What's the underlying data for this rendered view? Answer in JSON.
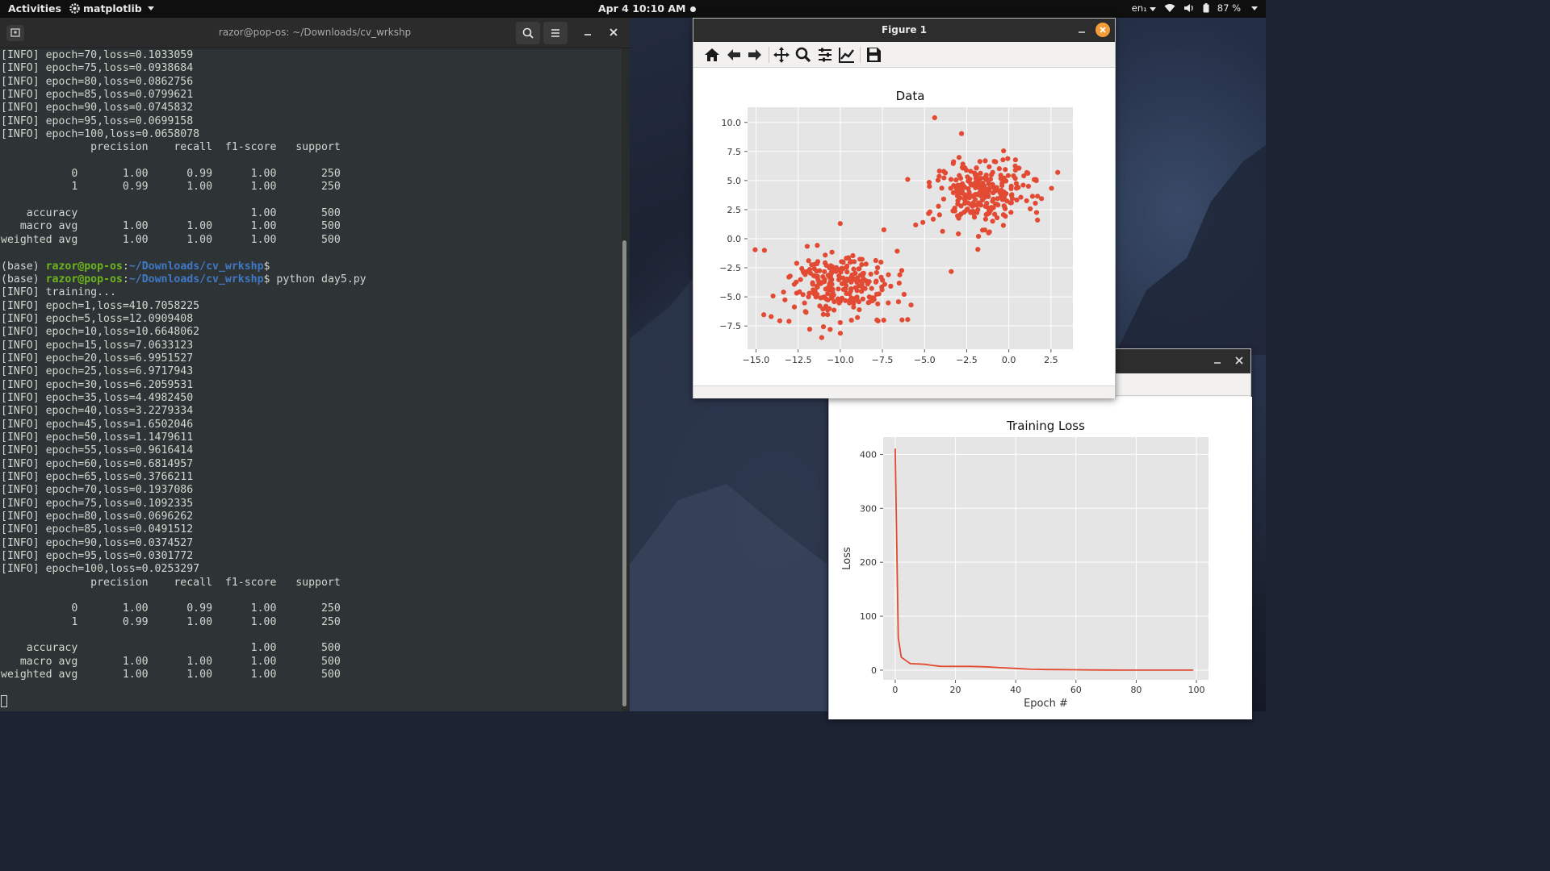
{
  "topbar": {
    "activities": "Activities",
    "app_name": "matplotlib",
    "clock": "Apr 4  10:10 AM",
    "keyboard": "en₁",
    "battery": "87 %"
  },
  "terminal": {
    "title": "razor@pop-os: ~/Downloads/cv_wrkshp",
    "lines": [
      {
        "t": "[INFO] epoch=70,loss=0.1033059"
      },
      {
        "t": "[INFO] epoch=75,loss=0.0938684"
      },
      {
        "t": "[INFO] epoch=80,loss=0.0862756"
      },
      {
        "t": "[INFO] epoch=85,loss=0.0799621"
      },
      {
        "t": "[INFO] epoch=90,loss=0.0745832"
      },
      {
        "t": "[INFO] epoch=95,loss=0.0699158"
      },
      {
        "t": "[INFO] epoch=100,loss=0.0658078"
      },
      {
        "t": "              precision    recall  f1-score   support"
      },
      {
        "t": ""
      },
      {
        "t": "           0       1.00      0.99      1.00       250"
      },
      {
        "t": "           1       0.99      1.00      1.00       250"
      },
      {
        "t": ""
      },
      {
        "t": "    accuracy                           1.00       500"
      },
      {
        "t": "   macro avg       1.00      1.00      1.00       500"
      },
      {
        "t": "weighted avg       1.00      1.00      1.00       500"
      },
      {
        "t": ""
      },
      {
        "prompt": true,
        "pre": "(base) ",
        "user": "razor@pop-os",
        "sep": ":",
        "path": "~/Downloads/cv_wrkshp",
        "cmd": "$"
      },
      {
        "prompt": true,
        "pre": "(base) ",
        "user": "razor@pop-os",
        "sep": ":",
        "path": "~/Downloads/cv_wrkshp",
        "cmd": "$ python day5.py"
      },
      {
        "t": "[INFO] training..."
      },
      {
        "t": "[INFO] epoch=1,loss=410.7058225"
      },
      {
        "t": "[INFO] epoch=5,loss=12.0909408"
      },
      {
        "t": "[INFO] epoch=10,loss=10.6648062"
      },
      {
        "t": "[INFO] epoch=15,loss=7.0633123"
      },
      {
        "t": "[INFO] epoch=20,loss=6.9951527"
      },
      {
        "t": "[INFO] epoch=25,loss=6.9717943"
      },
      {
        "t": "[INFO] epoch=30,loss=6.2059531"
      },
      {
        "t": "[INFO] epoch=35,loss=4.4982450"
      },
      {
        "t": "[INFO] epoch=40,loss=3.2279334"
      },
      {
        "t": "[INFO] epoch=45,loss=1.6502046"
      },
      {
        "t": "[INFO] epoch=50,loss=1.1479611"
      },
      {
        "t": "[INFO] epoch=55,loss=0.9616414"
      },
      {
        "t": "[INFO] epoch=60,loss=0.6814957"
      },
      {
        "t": "[INFO] epoch=65,loss=0.3766211"
      },
      {
        "t": "[INFO] epoch=70,loss=0.1937086"
      },
      {
        "t": "[INFO] epoch=75,loss=0.1092335"
      },
      {
        "t": "[INFO] epoch=80,loss=0.0696262"
      },
      {
        "t": "[INFO] epoch=85,loss=0.0491512"
      },
      {
        "t": "[INFO] epoch=90,loss=0.0374527"
      },
      {
        "t": "[INFO] epoch=95,loss=0.0301772"
      },
      {
        "t": "[INFO] epoch=100,loss=0.0253297"
      },
      {
        "t": "              precision    recall  f1-score   support"
      },
      {
        "t": ""
      },
      {
        "t": "           0       1.00      0.99      1.00       250"
      },
      {
        "t": "           1       0.99      1.00      1.00       250"
      },
      {
        "t": ""
      },
      {
        "t": "    accuracy                           1.00       500"
      },
      {
        "t": "   macro avg       1.00      1.00      1.00       500"
      },
      {
        "t": "weighted avg       1.00      1.00      1.00       500"
      },
      {
        "t": ""
      },
      {
        "cursor": true
      }
    ]
  },
  "figure1": {
    "window_title": "Figure 1",
    "toolbar_icons": [
      "home-icon",
      "back-arrow-icon",
      "forward-arrow-icon",
      "pan-move-icon",
      "zoom-magnifier-icon",
      "subplots-sliders-icon",
      "edit-axis-icon",
      "save-disk-icon"
    ]
  },
  "figure2": {
    "window_title": ""
  },
  "colors": {
    "plot_red": "#e24a33",
    "plot_bg": "#e5e5e5",
    "terminal_bg": "#2e3436",
    "prompt_green": "#6fb51d",
    "prompt_blue": "#3f78c6",
    "close_orange": "#f39c39"
  },
  "chart_data": [
    {
      "type": "scatter",
      "title": "Data",
      "xlabel": "",
      "ylabel": "",
      "xlim": [
        -15.5,
        3.8
      ],
      "ylim": [
        -9.5,
        11.3
      ],
      "xticks": [
        "−15.0",
        "−12.5",
        "−10.0",
        "−7.5",
        "−5.0",
        "−2.5",
        "0.0",
        "2.5"
      ],
      "xtick_values": [
        -15.0,
        -12.5,
        -10.0,
        -7.5,
        -5.0,
        -2.5,
        0.0,
        2.5
      ],
      "yticks": [
        "10.0",
        "7.5",
        "5.0",
        "2.5",
        "0.0",
        "−2.5",
        "−5.0",
        "−7.5"
      ],
      "ytick_values": [
        10.0,
        7.5,
        5.0,
        2.5,
        0.0,
        -2.5,
        -5.0,
        -7.5
      ],
      "grid": true,
      "clusters": [
        {
          "center": [
            -10.0,
            -4.0
          ],
          "n": 250
        },
        {
          "center": [
            -1.5,
            4.0
          ],
          "n": 250
        }
      ],
      "outliers": [
        [
          -14.5,
          -1.0
        ],
        [
          -14.1,
          -6.7
        ],
        [
          -10.6,
          -7.8
        ],
        [
          -11.1,
          -8.5
        ],
        [
          -10.0,
          1.3
        ],
        [
          -4.4,
          10.4
        ],
        [
          -6.0,
          5.1
        ],
        [
          -5.1,
          1.4
        ],
        [
          2.9,
          5.7
        ],
        [
          1.7,
          1.6
        ],
        [
          -1.8,
          0.2
        ],
        [
          -1.2,
          0.5
        ],
        [
          -5.8,
          -5.7
        ]
      ]
    },
    {
      "type": "line",
      "title": "Training Loss",
      "xlabel": "Epoch #",
      "ylabel": "Loss",
      "xlim": [
        -4,
        104
      ],
      "ylim": [
        -18,
        432
      ],
      "xticks": [
        "0",
        "20",
        "40",
        "60",
        "80",
        "100"
      ],
      "xtick_values": [
        0,
        20,
        40,
        60,
        80,
        100
      ],
      "yticks": [
        "400",
        "300",
        "200",
        "100",
        "0"
      ],
      "ytick_values": [
        400,
        300,
        200,
        100,
        0
      ],
      "grid": true,
      "x": [
        0,
        1,
        2,
        4,
        5,
        8,
        10,
        12,
        15,
        20,
        25,
        30,
        35,
        40,
        45,
        50,
        55,
        60,
        65,
        70,
        75,
        80,
        85,
        90,
        95,
        99
      ],
      "y": [
        410.7,
        60.0,
        24.0,
        16.0,
        12.1,
        11.5,
        10.7,
        9.0,
        7.06,
        7.0,
        6.97,
        6.2,
        4.5,
        3.23,
        1.65,
        1.15,
        0.96,
        0.68,
        0.38,
        0.19,
        0.11,
        0.07,
        0.05,
        0.04,
        0.03,
        0.025
      ]
    }
  ]
}
